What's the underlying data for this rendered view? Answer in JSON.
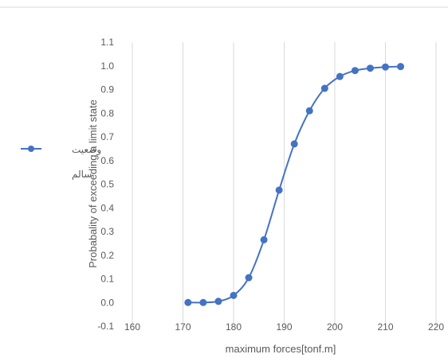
{
  "chart_data": {
    "type": "line",
    "title": "",
    "xlabel": "maximum forces[tonf.m]",
    "ylabel": "Probabality of exceeding a limit state",
    "xlim": [
      160,
      220
    ],
    "ylim": [
      -0.1,
      1.1
    ],
    "x_ticks": [
      "160",
      "170",
      "180",
      "190",
      "200",
      "210",
      "220"
    ],
    "y_ticks": [
      "-0.1",
      "0.0",
      "0.1",
      "0.2",
      "0.3",
      "0.4",
      "0.5",
      "0.6",
      "0.7",
      "0.8",
      "0.9",
      "1.0",
      "1.1"
    ],
    "grid": "vertical",
    "legend_position": "left",
    "series": [
      {
        "name": "وضعیت سالم",
        "color": "#4472C4",
        "marker": "circle",
        "x": [
          171,
          174,
          177,
          180,
          183,
          186,
          189,
          192,
          195,
          198,
          201,
          204,
          207,
          210,
          213
        ],
        "y": [
          0.0,
          0.0,
          0.005,
          0.03,
          0.105,
          0.265,
          0.475,
          0.67,
          0.81,
          0.905,
          0.955,
          0.98,
          0.99,
          0.995,
          0.997
        ]
      }
    ]
  },
  "legend": {
    "line1": "وضعیت",
    "line2": "سالم"
  }
}
